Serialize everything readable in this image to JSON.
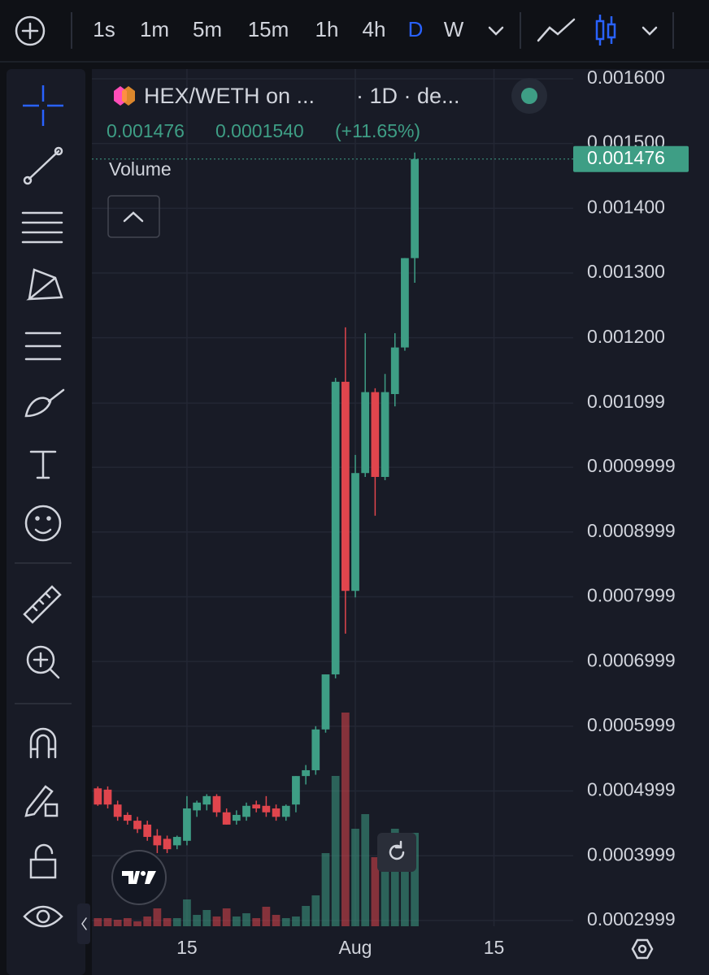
{
  "header": {
    "timeframes": [
      "1s",
      "1m",
      "5m",
      "15m",
      "1h",
      "4h",
      "D",
      "W"
    ],
    "symbol": "HEX/WETH on ...",
    "interval": "· 1D · de...",
    "legend_close": "0.001476",
    "legend_change": "0.0001540",
    "legend_change_pct": "(+11.65%)",
    "volume_label": "Volume"
  },
  "chart_data": {
    "type": "candlestick",
    "categories": [
      null,
      null,
      null,
      null,
      null,
      null,
      null,
      null,
      null,
      "15",
      null,
      null,
      null,
      null,
      null,
      null,
      null,
      null,
      null,
      null,
      null,
      null,
      null,
      null,
      null,
      null,
      "Aug",
      null,
      null,
      null,
      null,
      null,
      null
    ],
    "open": [
      0.000504,
      0.000502,
      0.000479,
      0.000463,
      0.000454,
      0.000448,
      0.000431,
      0.000426,
      0.000416,
      0.000423,
      0.00047,
      0.000479,
      0.000492,
      0.000467,
      0.000454,
      0.00046,
      0.000479,
      0.000477,
      0.000473,
      0.00046,
      0.000479,
      0.000523,
      0.000532,
      0.000595,
      0.00068,
      0.001132,
      0.000809,
      0.000991,
      0.001116,
      0.000985,
      0.001113,
      0.001185,
      0.001323
    ],
    "high": [
      0.000507,
      0.000507,
      0.000485,
      0.000467,
      0.00046,
      0.000454,
      0.000441,
      0.000431,
      0.000431,
      0.000492,
      0.000485,
      0.000495,
      0.000495,
      0.000473,
      0.00047,
      0.000482,
      0.000485,
      0.000492,
      0.000479,
      0.000479,
      0.000523,
      0.00054,
      0.0006,
      0.00068,
      0.001138,
      0.001216,
      0.001019,
      0.001207,
      0.001122,
      0.001144,
      0.001207,
      0.001323,
      0.001486
    ],
    "low": [
      0.000477,
      0.000473,
      0.000454,
      0.000448,
      0.000435,
      0.000423,
      0.000404,
      0.000404,
      0.00041,
      0.000416,
      0.00046,
      0.00047,
      0.00046,
      0.000448,
      0.000448,
      0.000454,
      0.000467,
      0.00046,
      0.000454,
      0.000454,
      0.000467,
      0.00051,
      0.000525,
      0.00059,
      0.000674,
      0.000743,
      0.000799,
      0.000985,
      0.000925,
      0.00098,
      0.001094,
      0.00118,
      0.001285
    ],
    "close": [
      0.000479,
      0.000479,
      0.00046,
      0.000454,
      0.000441,
      0.000429,
      0.000416,
      0.00041,
      0.000429,
      0.000473,
      0.000482,
      0.000492,
      0.000467,
      0.000448,
      0.000463,
      0.000477,
      0.000473,
      0.000467,
      0.00046,
      0.000477,
      0.000523,
      0.000532,
      0.000595,
      0.00068,
      0.001132,
      0.000809,
      0.000991,
      0.001116,
      0.000985,
      0.001116,
      0.001185,
      0.001323,
      0.001476
    ],
    "volume": [
      10,
      10,
      8,
      10,
      6,
      12,
      22,
      10,
      10,
      33,
      14,
      20,
      12,
      22,
      12,
      16,
      10,
      24,
      14,
      10,
      12,
      25,
      38,
      90,
      185,
      263,
      120,
      138,
      85,
      110,
      120,
      110,
      115
    ],
    "up_color": "#3e9e85",
    "down_color": "#e0454d",
    "last_price": 0.001476,
    "xlim": [
      -0.6,
      48
    ],
    "xticks": [
      {
        "value": 9,
        "label": "15"
      },
      {
        "value": 26,
        "label": "Aug"
      },
      {
        "value": 40,
        "label": "15"
      }
    ],
    "ylim": [
      0.000291,
      0.001615
    ],
    "yticks": [
      {
        "value": 0.0016,
        "label": "0.001600"
      },
      {
        "value": 0.0015,
        "label": "0.001500"
      },
      {
        "value": 0.0014,
        "label": "0.001400"
      },
      {
        "value": 0.0013,
        "label": "0.001300"
      },
      {
        "value": 0.0012,
        "label": "0.001200"
      },
      {
        "value": 0.001099,
        "label": "0.001099"
      },
      {
        "value": 0.0009999,
        "label": "0.0009999"
      },
      {
        "value": 0.0008999,
        "label": "0.0008999"
      },
      {
        "value": 0.0007999,
        "label": "0.0007999"
      },
      {
        "value": 0.0006999,
        "label": "0.0006999"
      },
      {
        "value": 0.0005999,
        "label": "0.0005999"
      },
      {
        "value": 0.0004999,
        "label": "0.0004999"
      },
      {
        "value": 0.0003999,
        "label": "0.0003999"
      },
      {
        "value": 0.0002999,
        "label": "0.0002999"
      }
    ],
    "grid": true
  }
}
